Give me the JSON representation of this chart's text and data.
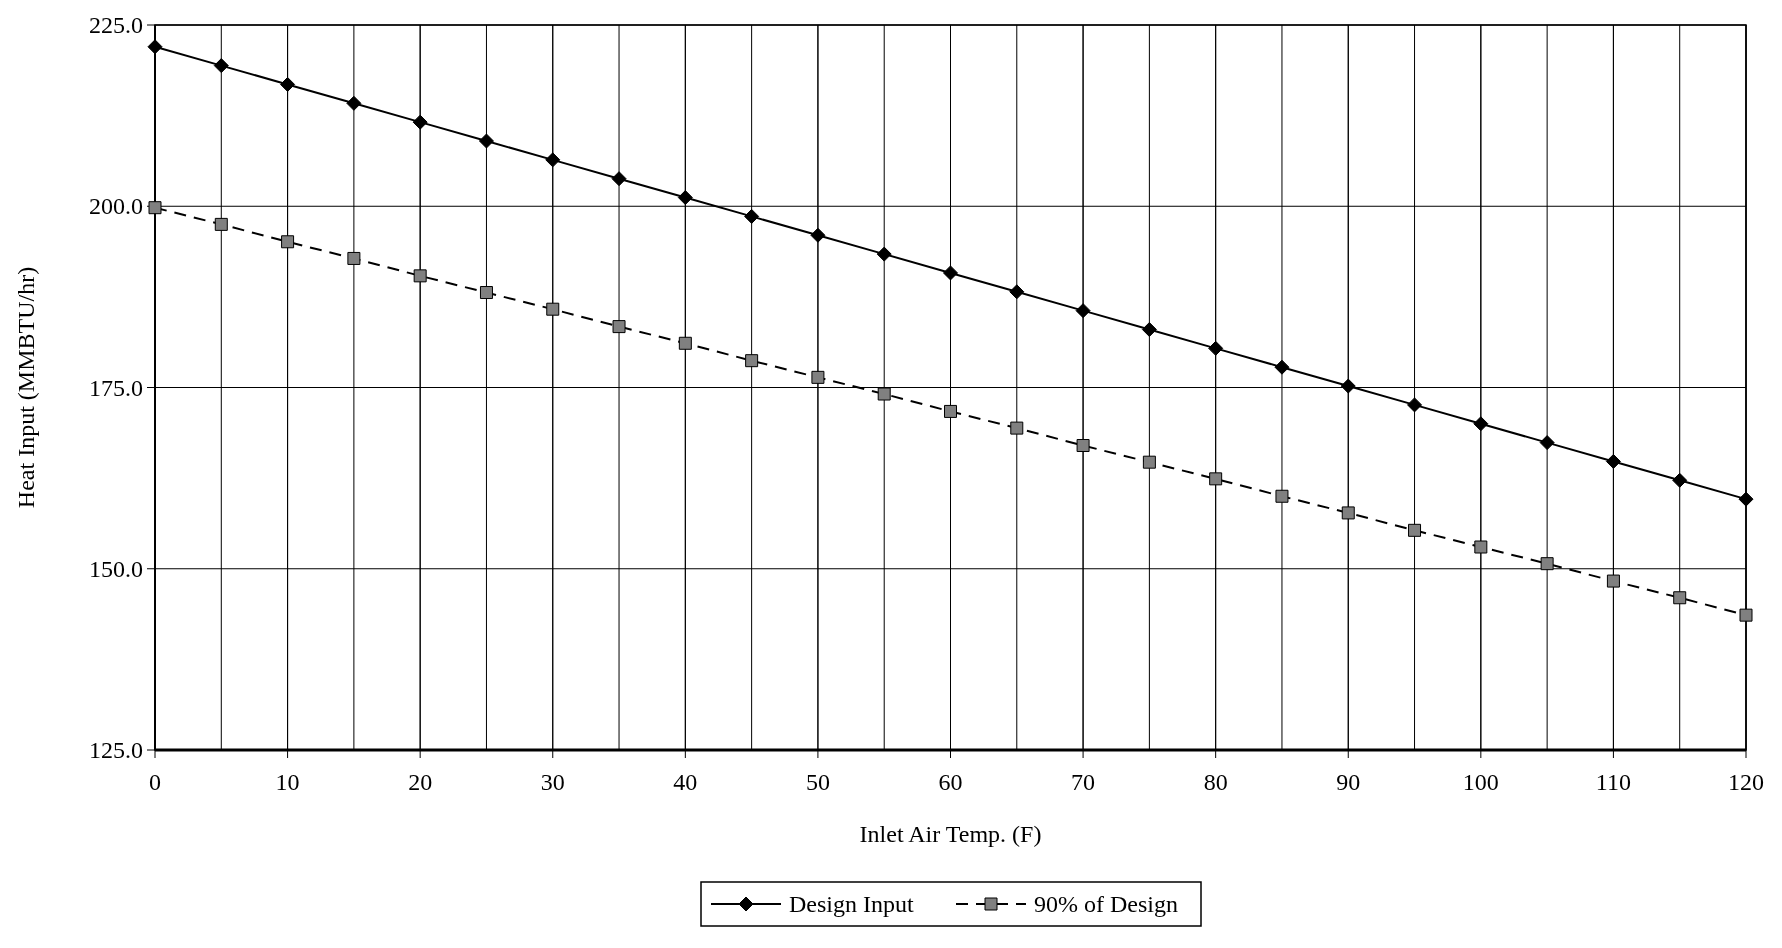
{
  "chart_data": {
    "type": "line",
    "xlabel": "Inlet Air Temp. (F)",
    "ylabel": "Heat Input (MMBTU/hr)",
    "x": [
      0,
      5,
      10,
      15,
      20,
      25,
      30,
      35,
      40,
      45,
      50,
      55,
      60,
      65,
      70,
      75,
      80,
      85,
      90,
      95,
      100,
      105,
      110,
      115,
      120
    ],
    "series": [
      {
        "name": "Design Input",
        "color": "#000000",
        "marker": "diamond",
        "line_style": "solid",
        "values": [
          222.0,
          219.4,
          216.8,
          214.2,
          211.6,
          209.0,
          206.4,
          203.8,
          201.2,
          198.6,
          196.0,
          193.4,
          190.8,
          188.2,
          185.6,
          183.0,
          180.4,
          177.8,
          175.2,
          172.6,
          170.0,
          167.4,
          164.8,
          162.2,
          159.6
        ]
      },
      {
        "name": "90% of Design",
        "color": "#808080",
        "marker": "square",
        "line_style": "dashed",
        "values": [
          199.8,
          197.5,
          195.1,
          192.8,
          190.4,
          188.1,
          185.8,
          183.4,
          181.1,
          178.7,
          176.4,
          174.1,
          171.7,
          169.4,
          167.0,
          164.7,
          162.4,
          160.0,
          157.7,
          155.3,
          153.0,
          150.7,
          148.3,
          146.0,
          143.6
        ]
      }
    ],
    "xlim": [
      0,
      120
    ],
    "xticks": [
      0,
      10,
      20,
      30,
      40,
      50,
      60,
      70,
      80,
      90,
      100,
      110,
      120
    ],
    "ylim": [
      125,
      225
    ],
    "yticks": [
      {
        "value": 125,
        "label": "125.0"
      },
      {
        "value": 150,
        "label": "150.0"
      },
      {
        "value": 175,
        "label": "175.0"
      },
      {
        "value": 200,
        "label": "200.0"
      },
      {
        "value": 225,
        "label": "225.0"
      }
    ],
    "grid": true,
    "legend": "bottom"
  }
}
